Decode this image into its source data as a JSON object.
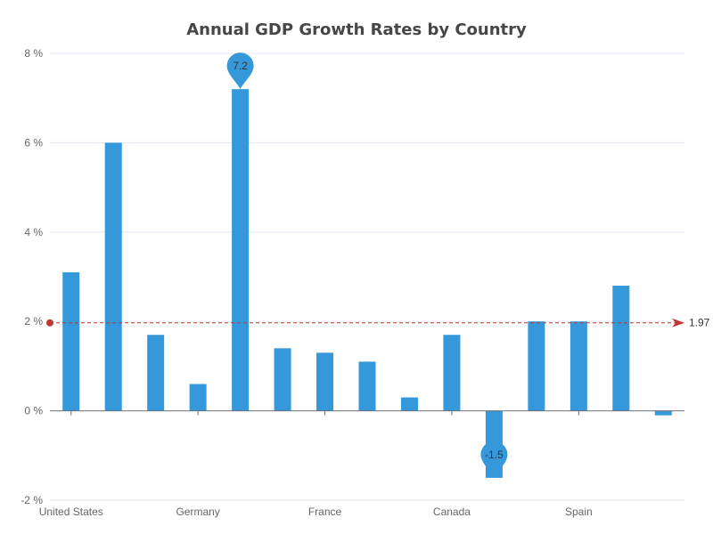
{
  "chart_data": {
    "type": "bar",
    "title": "Annual GDP Growth Rates by Country",
    "categories": [
      "United States",
      "",
      "",
      "Germany",
      "",
      "",
      "France",
      "",
      "",
      "Canada",
      "",
      "",
      "Spain",
      "",
      ""
    ],
    "values": [
      3.1,
      6.0,
      1.7,
      0.6,
      7.2,
      1.4,
      1.3,
      1.1,
      0.3,
      1.7,
      -1.5,
      2.0,
      2.0,
      2.8,
      -0.1
    ],
    "y_ticks": [
      "8 %",
      "6 %",
      "4 %",
      "2 %",
      "0 %",
      "-2 %"
    ],
    "y_tick_values": [
      8,
      6,
      4,
      2,
      0,
      -2
    ],
    "ylim": [
      -2,
      8
    ],
    "grid": true,
    "mark_points": [
      {
        "label": "7.2",
        "index": 4,
        "value": 7.2
      },
      {
        "label": "-1.5",
        "index": 10,
        "value": -1.5
      }
    ],
    "mark_line": {
      "value": 1.97,
      "label": "1.97"
    },
    "colors": {
      "bar": "#3498db",
      "mark_line": "#c23531",
      "grid": "#e0e6f1",
      "axis": "#6e7079"
    }
  }
}
